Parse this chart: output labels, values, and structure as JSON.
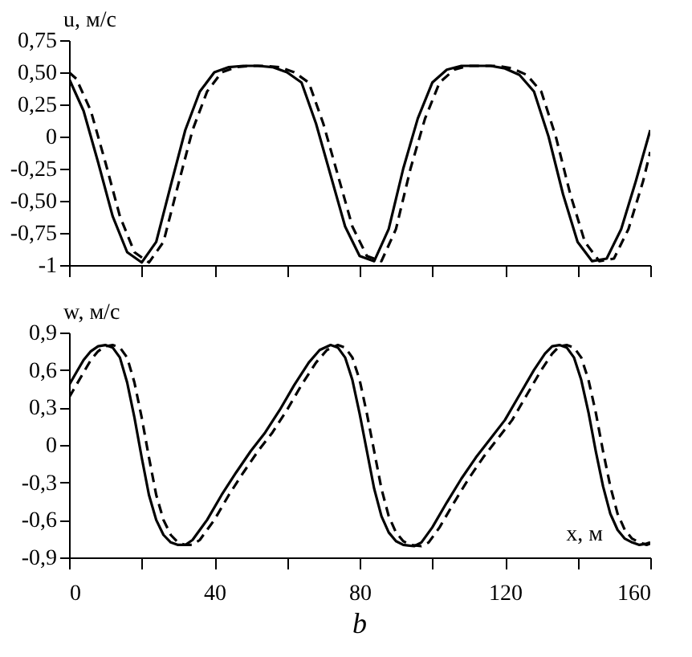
{
  "chart_data": [
    {
      "type": "line",
      "ylabel": "u, м/с",
      "xlim": [
        0,
        160
      ],
      "xticks": [
        {
          "value": 0,
          "label": null
        },
        {
          "value": 20,
          "label": null
        },
        {
          "value": 40,
          "label": null
        },
        {
          "value": 60,
          "label": null
        },
        {
          "value": 80,
          "label": null
        },
        {
          "value": 100,
          "label": null
        },
        {
          "value": 120,
          "label": null
        },
        {
          "value": 140,
          "label": null
        },
        {
          "value": 160,
          "label": null
        }
      ],
      "ylim": [
        -1,
        0.75
      ],
      "yticks": [
        {
          "value": 0.75,
          "label": "0,75"
        },
        {
          "value": 0.5,
          "label": "0,50"
        },
        {
          "value": 0.25,
          "label": "0,25"
        },
        0,
        {
          "value": -0.25,
          "label": "-0,25"
        },
        {
          "value": -0.5,
          "label": "-0,50"
        },
        {
          "value": -0.75,
          "label": "-0,75"
        },
        -1
      ],
      "tick_labels": "y",
      "grid": false,
      "marker": "none",
      "series": [
        {
          "color": "#000000",
          "line_style": "solid",
          "x": [
            0,
            4,
            8,
            12,
            16,
            20,
            24,
            28,
            32,
            36,
            40,
            44,
            48,
            52,
            56,
            60,
            64,
            68,
            72,
            76,
            80,
            84,
            88,
            92,
            96,
            100,
            104,
            108,
            112,
            116,
            120,
            124,
            128,
            132,
            136,
            140,
            144,
            148,
            152,
            156,
            160
          ],
          "values": [
            0.45,
            0.2,
            -0.2,
            -0.62,
            -0.9,
            -0.98,
            -0.82,
            -0.38,
            0.05,
            0.35,
            0.5,
            0.54,
            0.55,
            0.55,
            0.54,
            0.5,
            0.42,
            0.1,
            -0.3,
            -0.7,
            -0.93,
            -0.97,
            -0.72,
            -0.25,
            0.14,
            0.42,
            0.52,
            0.55,
            0.55,
            0.55,
            0.53,
            0.48,
            0.35,
            0.0,
            -0.45,
            -0.82,
            -0.97,
            -0.95,
            -0.72,
            -0.35,
            0.05
          ]
        },
        {
          "color": "#000000",
          "line_style": "dashed",
          "x": [
            0,
            2,
            6,
            10,
            14,
            18,
            22,
            26,
            30,
            34,
            38,
            42,
            46,
            50,
            54,
            58,
            62,
            66,
            70,
            74,
            78,
            82,
            86,
            90,
            94,
            98,
            102,
            106,
            110,
            114,
            118,
            122,
            126,
            130,
            134,
            138,
            142,
            146,
            150,
            154,
            158,
            160
          ],
          "values": [
            0.5,
            0.45,
            0.2,
            -0.2,
            -0.62,
            -0.9,
            -0.98,
            -0.82,
            -0.38,
            0.05,
            0.35,
            0.5,
            0.54,
            0.55,
            0.55,
            0.54,
            0.5,
            0.42,
            0.1,
            -0.3,
            -0.7,
            -0.93,
            -0.97,
            -0.72,
            -0.25,
            0.14,
            0.42,
            0.52,
            0.55,
            0.55,
            0.55,
            0.53,
            0.48,
            0.35,
            0.0,
            -0.45,
            -0.82,
            -0.97,
            -0.95,
            -0.72,
            -0.35,
            -0.12
          ]
        }
      ]
    },
    {
      "type": "line",
      "ylabel": "w, м/с",
      "xlabel": "x, м",
      "annotations": [
        "b"
      ],
      "xlim": [
        0,
        160
      ],
      "xticks": [
        0,
        {
          "value": 20,
          "label": null
        },
        40,
        {
          "value": 60,
          "label": null
        },
        80,
        {
          "value": 100,
          "label": null
        },
        120,
        {
          "value": 140,
          "label": null
        },
        160
      ],
      "ylim": [
        -0.9,
        0.9
      ],
      "yticks": [
        {
          "value": 0.9,
          "label": "0,9"
        },
        {
          "value": 0.6,
          "label": "0,6"
        },
        {
          "value": 0.3,
          "label": "0,3"
        },
        0,
        {
          "value": -0.3,
          "label": "-0,3"
        },
        {
          "value": -0.6,
          "label": "-0,6"
        },
        {
          "value": -0.9,
          "label": "-0,9"
        }
      ],
      "grid": false,
      "marker": "none",
      "series": [
        {
          "color": "#000000",
          "line_style": "solid",
          "x": [
            0,
            2,
            4,
            6,
            8,
            10,
            12,
            14,
            16,
            18,
            20,
            22,
            24,
            26,
            28,
            30,
            32,
            34,
            38,
            42,
            46,
            50,
            54,
            58,
            62,
            66,
            69,
            72,
            74,
            76,
            78,
            80,
            82,
            84,
            86,
            88,
            90,
            92,
            95,
            97,
            100,
            104,
            108,
            112,
            116,
            120,
            124,
            128,
            131,
            133,
            135,
            137,
            139,
            141,
            143,
            145,
            147,
            149,
            151,
            153,
            155,
            157,
            159,
            160
          ],
          "values": [
            0.48,
            0.58,
            0.68,
            0.75,
            0.79,
            0.8,
            0.78,
            0.7,
            0.5,
            0.22,
            -0.1,
            -0.4,
            -0.6,
            -0.72,
            -0.78,
            -0.8,
            -0.8,
            -0.76,
            -0.6,
            -0.4,
            -0.22,
            -0.05,
            0.1,
            0.28,
            0.48,
            0.66,
            0.76,
            0.8,
            0.78,
            0.7,
            0.52,
            0.25,
            -0.05,
            -0.35,
            -0.57,
            -0.7,
            -0.77,
            -0.8,
            -0.81,
            -0.78,
            -0.66,
            -0.46,
            -0.27,
            -0.1,
            0.05,
            0.2,
            0.4,
            0.6,
            0.73,
            0.79,
            0.8,
            0.78,
            0.7,
            0.52,
            0.26,
            -0.05,
            -0.33,
            -0.55,
            -0.68,
            -0.75,
            -0.78,
            -0.8,
            -0.79,
            -0.78
          ]
        },
        {
          "color": "#000000",
          "line_style": "dashed",
          "x": [
            0,
            2,
            4,
            6,
            8,
            10,
            12,
            14,
            16,
            18,
            20,
            22,
            24,
            26,
            28,
            30,
            32,
            34,
            36,
            40,
            44,
            48,
            52,
            56,
            60,
            64,
            68,
            71,
            74,
            76,
            78,
            80,
            82,
            84,
            86,
            88,
            90,
            92,
            94,
            97,
            99,
            102,
            106,
            110,
            114,
            118,
            122,
            126,
            130,
            133,
            135,
            137,
            139,
            141,
            143,
            145,
            147,
            149,
            151,
            153,
            155,
            157,
            159,
            160
          ],
          "values": [
            0.38,
            0.48,
            0.58,
            0.68,
            0.75,
            0.79,
            0.8,
            0.78,
            0.7,
            0.5,
            0.22,
            -0.1,
            -0.4,
            -0.6,
            -0.72,
            -0.78,
            -0.8,
            -0.8,
            -0.76,
            -0.6,
            -0.4,
            -0.22,
            -0.05,
            0.1,
            0.28,
            0.48,
            0.66,
            0.76,
            0.8,
            0.78,
            0.7,
            0.52,
            0.25,
            -0.05,
            -0.35,
            -0.57,
            -0.7,
            -0.77,
            -0.8,
            -0.81,
            -0.78,
            -0.66,
            -0.46,
            -0.27,
            -0.1,
            0.05,
            0.2,
            0.4,
            0.6,
            0.73,
            0.79,
            0.8,
            0.78,
            0.7,
            0.52,
            0.26,
            -0.05,
            -0.33,
            -0.55,
            -0.68,
            -0.75,
            -0.78,
            -0.8,
            -0.79
          ]
        }
      ]
    }
  ]
}
